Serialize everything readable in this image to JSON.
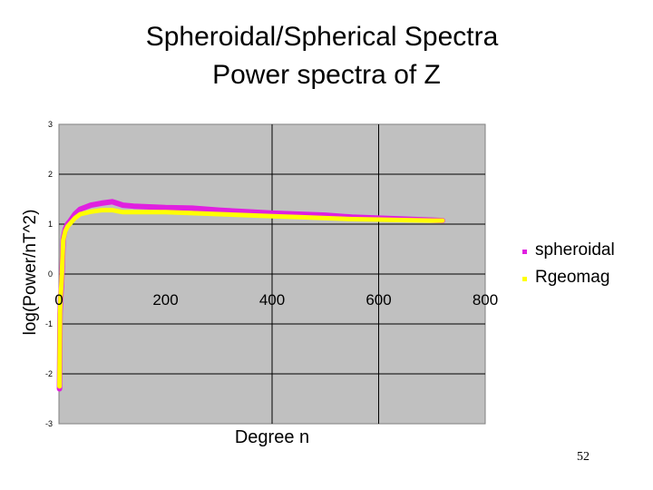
{
  "slide": {
    "title": "Spheroidal/Spherical Spectra",
    "subtitle": "Power spectra of Z",
    "page_number": "52"
  },
  "chart_data": {
    "type": "line",
    "xlabel": "Degree n",
    "ylabel": "log(Power/nT^2)",
    "xlim": [
      0,
      800
    ],
    "ylim": [
      -3,
      3
    ],
    "x_ticks": [
      "0",
      "200",
      "400",
      "600",
      "800"
    ],
    "y_ticks": [
      "3",
      "2",
      "1",
      "0",
      "-1",
      "-2",
      "-3"
    ],
    "grid": {
      "vertical": [
        400,
        600
      ],
      "horizontal": [
        2,
        1,
        0,
        -1,
        -2
      ]
    },
    "plot_background": "#c0c0c0",
    "legend_position": "right",
    "series": [
      {
        "name": "spheroidal",
        "color": "#e020e0",
        "x": [
          1,
          2,
          3,
          5,
          8,
          12,
          16,
          20,
          30,
          40,
          60,
          80,
          100,
          120,
          140,
          160,
          200,
          250,
          300,
          350,
          400,
          450,
          500,
          550,
          600,
          650,
          700,
          720
        ],
        "y": [
          -2.3,
          -0.8,
          -0.5,
          -0.2,
          0.7,
          0.9,
          1.0,
          1.05,
          1.2,
          1.3,
          1.38,
          1.42,
          1.45,
          1.38,
          1.36,
          1.35,
          1.33,
          1.32,
          1.28,
          1.25,
          1.22,
          1.2,
          1.18,
          1.14,
          1.12,
          1.1,
          1.08,
          1.07
        ]
      },
      {
        "name": "Rgeomag",
        "color": "#ffff00",
        "x": [
          1,
          2,
          3,
          5,
          8,
          12,
          16,
          20,
          30,
          40,
          60,
          80,
          100,
          120,
          140,
          160,
          200,
          250,
          300,
          350,
          400,
          450,
          500,
          550,
          600,
          650,
          700,
          720
        ],
        "y": [
          -2.25,
          -0.75,
          -0.45,
          -0.15,
          0.68,
          0.86,
          0.95,
          1.0,
          1.12,
          1.2,
          1.25,
          1.28,
          1.28,
          1.24,
          1.24,
          1.24,
          1.24,
          1.22,
          1.2,
          1.18,
          1.16,
          1.14,
          1.12,
          1.1,
          1.09,
          1.08,
          1.07,
          1.07
        ]
      }
    ]
  }
}
